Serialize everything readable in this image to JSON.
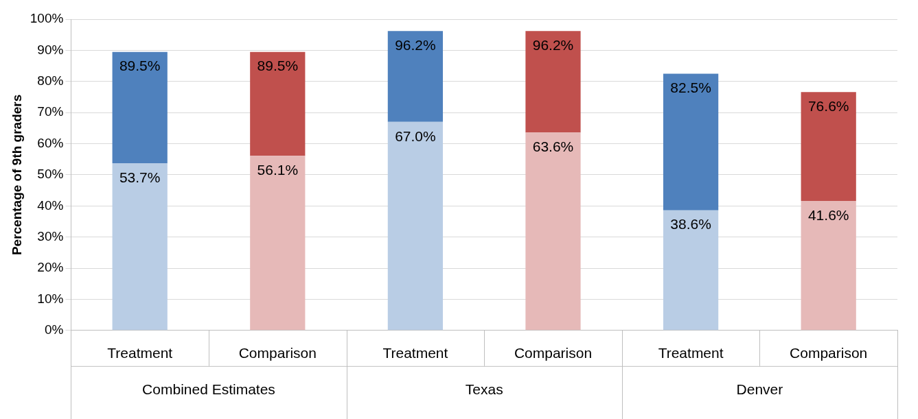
{
  "chart_data": {
    "type": "bar",
    "ylabel": "Percentage of 9th graders",
    "stacked": true,
    "categories": [
      "Treatment",
      "Comparison",
      "Treatment",
      "Comparison",
      "Treatment",
      "Comparison"
    ],
    "series": [
      {
        "colors": [
          "#b9cde5",
          "#e6b9b8",
          "#b9cde5",
          "#e6b9b8",
          "#b9cde5",
          "#e6b9b8"
        ],
        "values": [
          53.7,
          56.1,
          67.0,
          63.6,
          38.6,
          41.6
        ],
        "value_labels": [
          "53.7%",
          "56.1%",
          "67.0%",
          "63.6%",
          "38.6%",
          "41.6%"
        ]
      },
      {
        "colors": [
          "#4f81bd",
          "#c0504d",
          "#4f81bd",
          "#c0504d",
          "#4f81bd",
          "#c0504d"
        ],
        "values": [
          35.8,
          33.4,
          29.2,
          32.6,
          43.9,
          35.0
        ]
      }
    ],
    "totals": [
      "89.5%",
      "89.5%",
      "96.2%",
      "96.2%",
      "82.5%",
      "76.6%"
    ],
    "annotations": [
      "Combined Estimates",
      "Texas",
      "Denver"
    ],
    "ylim": [
      0,
      100
    ],
    "yticks": [
      {
        "value": 0,
        "label": "0%"
      },
      {
        "value": 10,
        "label": "10%"
      },
      {
        "value": 20,
        "label": "20%"
      },
      {
        "value": 30,
        "label": "30%"
      },
      {
        "value": 40,
        "label": "40%"
      },
      {
        "value": 50,
        "label": "50%"
      },
      {
        "value": 60,
        "label": "60%"
      },
      {
        "value": 70,
        "label": "70%"
      },
      {
        "value": 80,
        "label": "80%"
      },
      {
        "value": 90,
        "label": "90%"
      },
      {
        "value": 100,
        "label": "100%"
      }
    ],
    "grid": "y",
    "legend": false
  }
}
